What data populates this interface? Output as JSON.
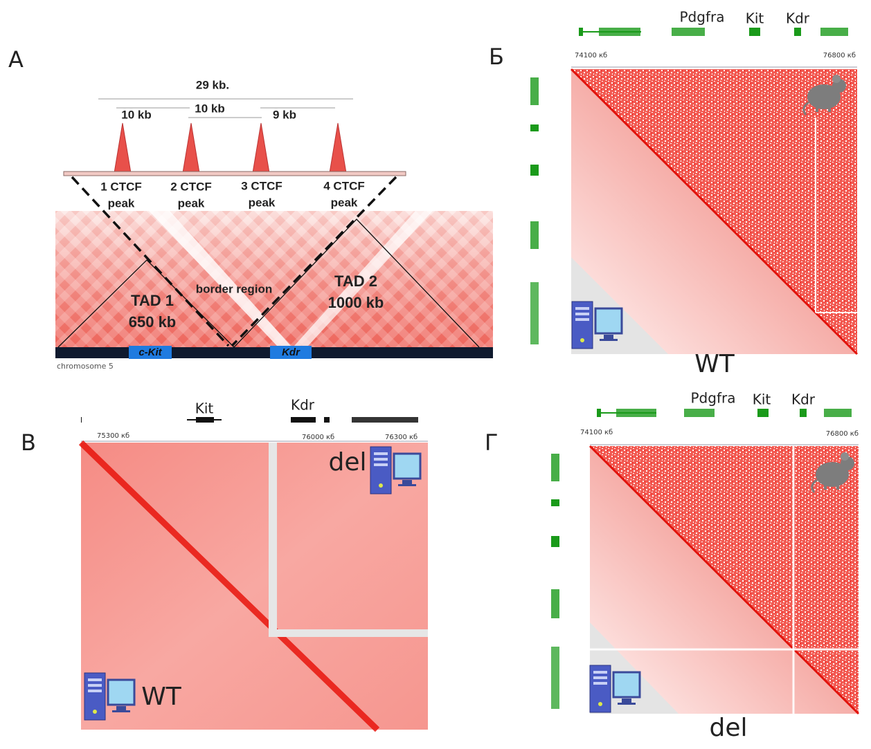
{
  "panels": [
    {
      "label": "А",
      "total_span": "29 kb.",
      "distances": [
        "10 kb",
        "10 kb",
        "9 kb"
      ],
      "peaks": [
        [
          "1 CTCF",
          "peak"
        ],
        [
          "2 CTCF",
          "peak"
        ],
        [
          "3 CTCF",
          "peak"
        ],
        [
          "4 CTCF",
          "peak"
        ]
      ],
      "tads": [
        [
          "TAD 1",
          "650 kb"
        ],
        [
          "TAD 2",
          "1000 kb"
        ]
      ],
      "border": "border region",
      "genes": [
        "c-Kit",
        "Kdr"
      ],
      "chromosome": "chromosome 5"
    },
    {
      "label": "Б",
      "genes": [
        "Pdgfra",
        "Kit",
        "Kdr"
      ],
      "axis": [
        "74100 кб",
        "76800 кб"
      ],
      "condition": "WT"
    },
    {
      "label": "В",
      "genes": [
        "Kit",
        "Kdr"
      ],
      "axis": [
        "75300 кб",
        "76000 кб",
        "76300 кб"
      ],
      "conditions": [
        "del",
        "WT"
      ]
    },
    {
      "label": "Г",
      "genes": [
        "Pdgfra",
        "Kit",
        "Kdr"
      ],
      "axis": [
        "74100 кб",
        "76800 кб"
      ],
      "condition": "del"
    }
  ]
}
